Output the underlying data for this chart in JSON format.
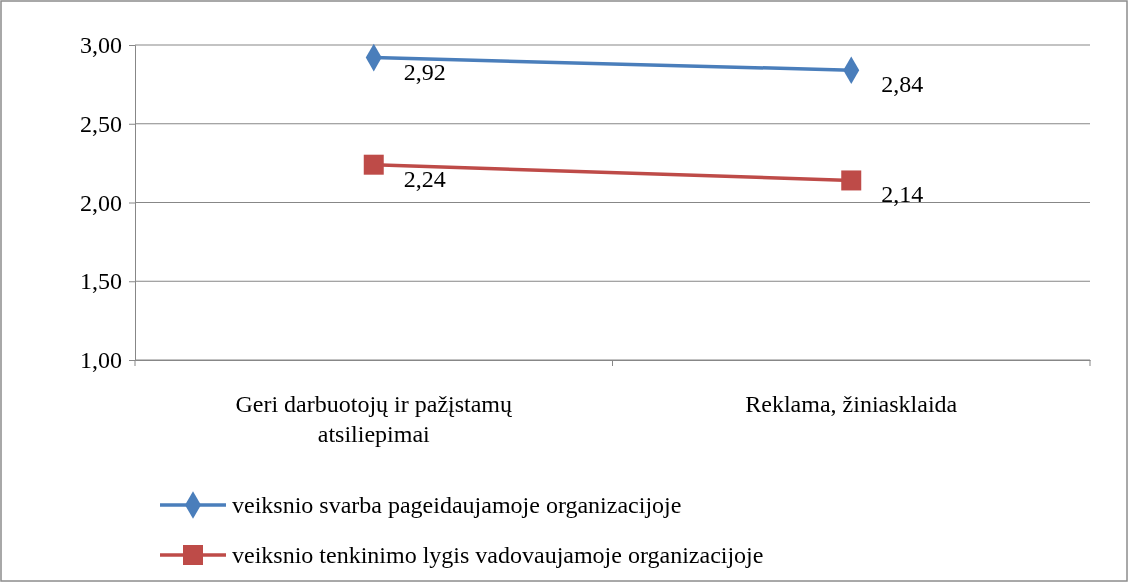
{
  "chart_data": {
    "type": "line",
    "categories": [
      "Geri darbuotojų ir pažįstamų atsiliepimai",
      "Reklama, žiniasklaida"
    ],
    "series": [
      {
        "name": "veiksnio svarba pageidaujamoje organizacijoje",
        "color": "#4a7ebb",
        "marker": "diamond",
        "values": [
          2.92,
          2.84
        ],
        "value_labels": [
          "2,92",
          "2,84"
        ]
      },
      {
        "name": "veiksnio tenkinimo lygis vadovaujamoje organizacijoje",
        "color": "#be4b48",
        "marker": "square",
        "values": [
          2.24,
          2.14
        ],
        "value_labels": [
          "2,24",
          "2,14"
        ]
      }
    ],
    "ylim": [
      1,
      3
    ],
    "yticks": [
      {
        "value": 1,
        "label": "1,00"
      },
      {
        "value": 1.5,
        "label": "1,50"
      },
      {
        "value": 2,
        "label": "2,00"
      },
      {
        "value": 2.5,
        "label": "2,50"
      },
      {
        "value": 3,
        "label": "3,00"
      }
    ],
    "grid": "y",
    "legend": "bottom left",
    "line_style": "solid"
  }
}
